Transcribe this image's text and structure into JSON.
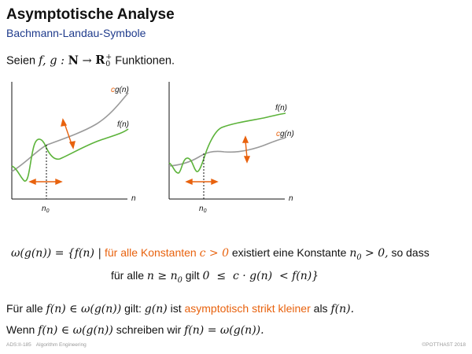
{
  "slide": {
    "title": "Asymptotische Analyse",
    "subtitle": "Bachmann-Landau-Symbole"
  },
  "intro": {
    "seien": "Seien",
    "vars": "f, g : ",
    "naturals": "N",
    "arrow": " → ",
    "reals": "R",
    "reals_sup": "+",
    "reals_sub": "0",
    "suffix": "Funktionen."
  },
  "graph_left": {
    "label_cg_c": "c",
    "label_cg_rest": "g(n)",
    "label_f": "f(n)",
    "label_n": "n",
    "label_n0_n": "n",
    "label_n0_sub": "0"
  },
  "graph_right": {
    "label_f": "f(n)",
    "label_cg_c": "c",
    "label_cg_rest": "g(n)",
    "label_n": "n",
    "label_n0_n": "n",
    "label_n0_sub": "0"
  },
  "definition": {
    "lhs": "ω(g(n)) = {f(n)  |",
    "condition_orange_text": "für alle Konstanten",
    "condition_orange_math": "c > 0",
    "exists_text": "existiert eine Konstante",
    "exists_math": "n",
    "exists_math_sub": "0",
    "exists_math_rest": " > 0,",
    "so_dass": "so dass",
    "line2_text": "für alle",
    "line2_math1": "n ≥ n",
    "line2_math1_sub": "0",
    "line2_gilt": "gilt",
    "line2_math2": "0  ≤  c · g(n)  < f(n)}"
  },
  "statement1": {
    "prefix": "Für alle",
    "math1": "f(n) ∈ ω(g(n))",
    "gilt": "gilt:",
    "math2": "g(n)",
    "ist": "ist",
    "orange": "asymptotisch strikt kleiner",
    "als": "als",
    "math3": "f(n)."
  },
  "statement2": {
    "wenn": "Wenn",
    "math1": "f(n) ∈ ω(g(n))",
    "schreiben": "schreiben wir",
    "math2": "f(n) = ω(g(n))."
  },
  "footer": {
    "left_code": "ADS:II-185",
    "left_topic": "Algorithm Engineering",
    "right": "©POTTHAST 2018"
  },
  "colors": {
    "orange": "#e8620e",
    "green": "#5cb33a",
    "gray": "#9a9a9a",
    "subtitle_blue": "#1f3b8c"
  }
}
